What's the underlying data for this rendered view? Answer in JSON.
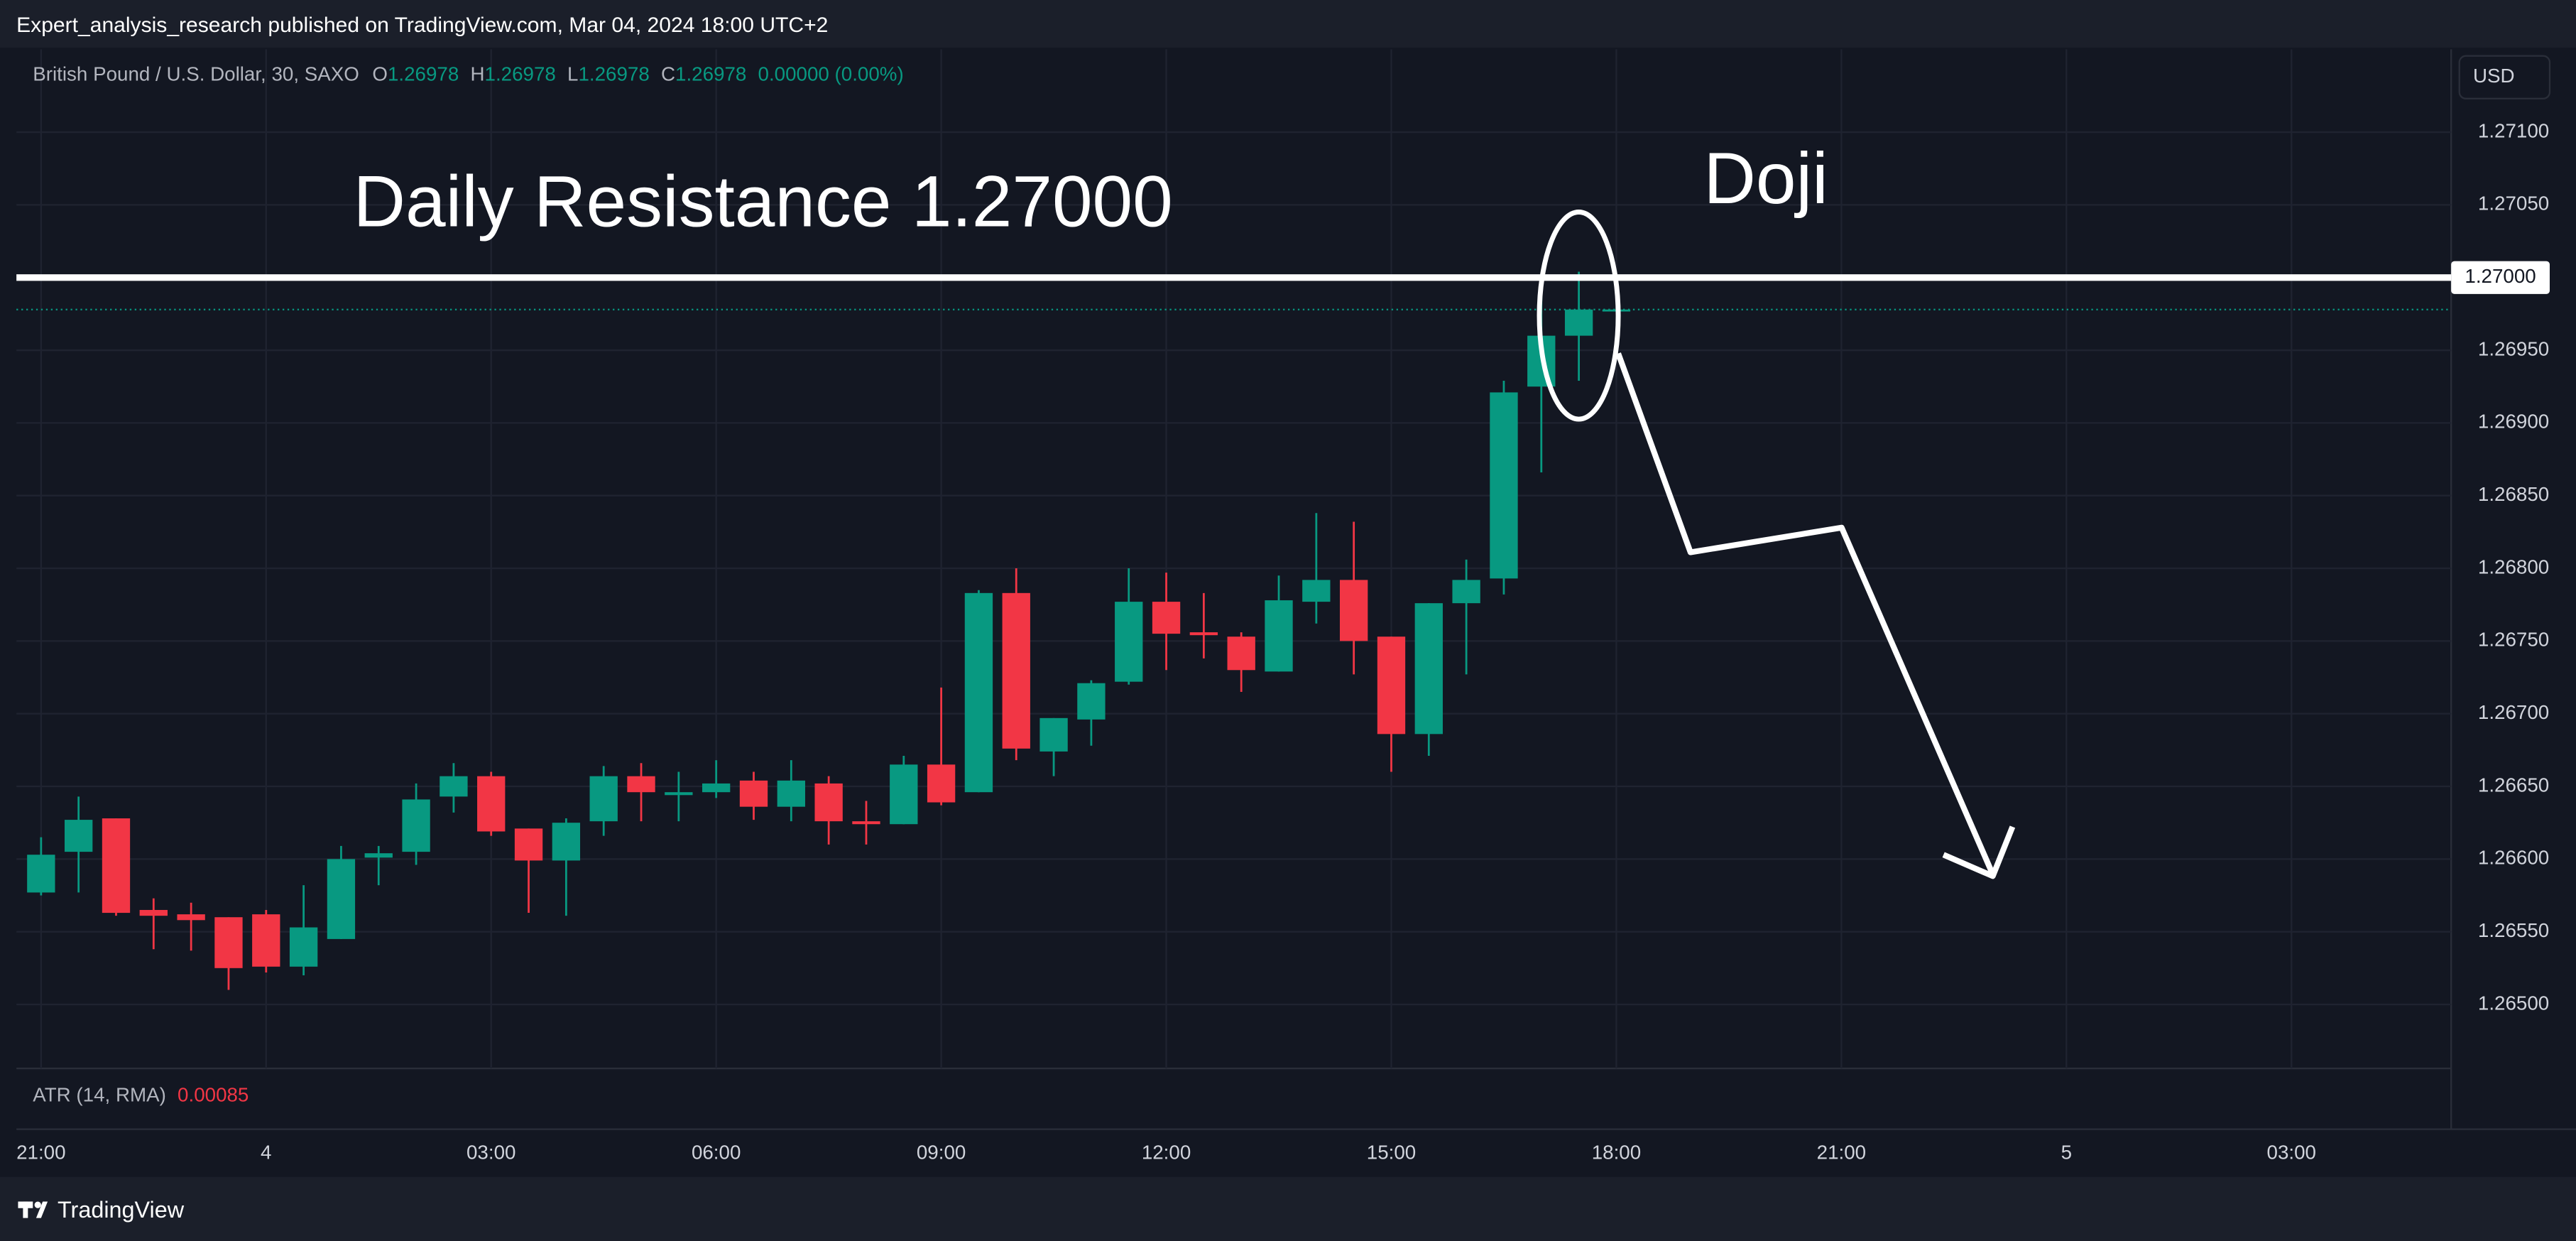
{
  "header": {
    "publisher": "Expert_analysis_research published on TradingView.com, Mar 04, 2024 18:00 UTC+2",
    "brand": "TradingView"
  },
  "chart_data": {
    "type": "candlestick",
    "legend": {
      "symbol": "British Pound / U.S. Dollar, 30, SAXO",
      "o_label": "O",
      "open": "1.26978",
      "h_label": "H",
      "high": "1.26978",
      "l_label": "L",
      "low": "1.26978",
      "c_label": "C",
      "close": "1.26978",
      "change": "0.00000 (0.00%)"
    },
    "currency": "USD",
    "annotations": {
      "resistance_text": "Daily Resistance 1.27000",
      "doji_text": "Doji"
    },
    "resistance_line": {
      "value": 1.27,
      "label": "1.27000"
    },
    "indicator": {
      "name": "ATR (14, RMA)",
      "value": 0.00085
    },
    "up_color": "#089981",
    "down_color": "#f23645",
    "grid": true,
    "categories": [
      "21:00",
      null,
      null,
      null,
      null,
      null,
      "4",
      null,
      null,
      null,
      null,
      null,
      "03:00",
      null,
      null,
      null,
      null,
      null,
      "06:00",
      null,
      null,
      null,
      null,
      null,
      "09:00",
      null,
      null,
      null,
      null,
      null,
      "12:00",
      null,
      null,
      null,
      null,
      null,
      "15:00",
      null,
      null,
      null,
      null,
      null,
      "18:00",
      null,
      null,
      null,
      null,
      null,
      "21:00",
      null,
      null,
      null,
      null,
      null,
      "5",
      null,
      null,
      null,
      null,
      null,
      "03:00",
      null,
      null,
      null,
      null
    ],
    "open": [
      1.26577,
      1.26605,
      1.26628,
      1.26565,
      1.26562,
      1.2656,
      1.26562,
      1.26526,
      1.26545,
      1.26601,
      1.26605,
      1.26643,
      1.26657,
      1.26621,
      1.26599,
      1.26626,
      1.26657,
      1.26644,
      1.26646,
      1.26654,
      1.26636,
      1.26652,
      1.26626,
      1.26624,
      1.26665,
      1.26646,
      1.26783,
      1.26674,
      1.26696,
      1.26722,
      1.26777,
      1.26756,
      1.26753,
      1.26729,
      1.26777,
      1.26792,
      1.26753,
      1.26686,
      1.26776,
      1.26793,
      1.26925,
      1.2696,
      1.26978,
      null,
      null,
      null,
      null,
      null,
      null,
      null,
      null,
      null,
      null,
      null,
      null,
      null,
      null,
      null,
      null,
      null,
      null,
      null,
      null,
      null,
      null
    ],
    "high": [
      1.26615,
      1.26643,
      1.26628,
      1.26573,
      1.2657,
      1.2656,
      1.26565,
      1.26582,
      1.26609,
      1.26609,
      1.26652,
      1.26666,
      1.2666,
      1.26621,
      1.26628,
      1.26664,
      1.26666,
      1.2666,
      1.26668,
      1.2666,
      1.26668,
      1.26657,
      1.2664,
      1.26671,
      1.26718,
      1.26785,
      1.268,
      1.26697,
      1.26723,
      1.268,
      1.26797,
      1.26783,
      1.26756,
      1.26795,
      1.26838,
      1.26832,
      1.26753,
      1.26776,
      1.26806,
      1.26929,
      1.26987,
      1.27004,
      1.26978,
      null,
      null,
      null,
      null,
      null,
      null,
      null,
      null,
      null,
      null,
      null,
      null,
      null,
      null,
      null,
      null,
      null,
      null,
      null,
      null,
      null,
      null
    ],
    "low": [
      1.26575,
      1.26577,
      1.26561,
      1.26538,
      1.26537,
      1.2651,
      1.26522,
      1.2652,
      1.26545,
      1.26582,
      1.26596,
      1.26632,
      1.26616,
      1.26563,
      1.26561,
      1.26616,
      1.26626,
      1.26626,
      1.26642,
      1.26627,
      1.26626,
      1.2661,
      1.2661,
      1.26624,
      1.26637,
      1.26646,
      1.26668,
      1.26657,
      1.26678,
      1.2672,
      1.2673,
      1.26738,
      1.26715,
      1.26729,
      1.26762,
      1.26727,
      1.2666,
      1.26671,
      1.26727,
      1.26782,
      1.26866,
      1.26929,
      1.26978,
      null,
      null,
      null,
      null,
      null,
      null,
      null,
      null,
      null,
      null,
      null,
      null,
      null,
      null,
      null,
      null,
      null,
      null,
      null,
      null,
      null,
      null
    ],
    "close": [
      1.26603,
      1.26627,
      1.26563,
      1.26561,
      1.26558,
      1.26525,
      1.26526,
      1.26553,
      1.266,
      1.26604,
      1.26641,
      1.26657,
      1.26619,
      1.26599,
      1.26625,
      1.26657,
      1.26646,
      1.26646,
      1.26652,
      1.26636,
      1.26654,
      1.26626,
      1.26624,
      1.26665,
      1.26639,
      1.26783,
      1.26676,
      1.26697,
      1.26721,
      1.26777,
      1.26755,
      1.26754,
      1.2673,
      1.26778,
      1.26792,
      1.2675,
      1.26686,
      1.26776,
      1.26792,
      1.26921,
      1.2696,
      1.26978,
      1.26978,
      null,
      null,
      null,
      null,
      null,
      null,
      null,
      null,
      null,
      null,
      null,
      null,
      null,
      null,
      null,
      null,
      null,
      null,
      null,
      null,
      null,
      null
    ],
    "ylim": [
      1.26456,
      1.27157
    ],
    "yticks": [
      {
        "value": 1.271,
        "label": "1.27100"
      },
      {
        "value": 1.2705,
        "label": "1.27050"
      },
      {
        "value": 1.2695,
        "label": "1.26950"
      },
      {
        "value": 1.269,
        "label": "1.26900"
      },
      {
        "value": 1.2685,
        "label": "1.26850"
      },
      {
        "value": 1.268,
        "label": "1.26800"
      },
      {
        "value": 1.2675,
        "label": "1.26750"
      },
      {
        "value": 1.267,
        "label": "1.26700"
      },
      {
        "value": 1.2665,
        "label": "1.26650"
      },
      {
        "value": 1.266,
        "label": "1.26600"
      },
      {
        "value": 1.2655,
        "label": "1.26550"
      },
      {
        "value": 1.265,
        "label": "1.26500"
      }
    ]
  }
}
